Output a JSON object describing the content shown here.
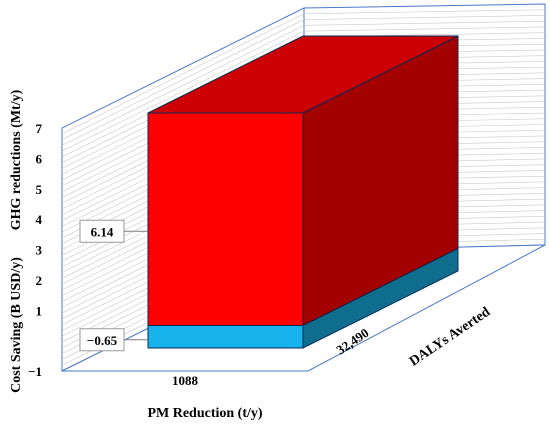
{
  "chart_data": {
    "type": "bar",
    "subtype": "3d-stacked-bar",
    "x_category": "1088",
    "xlabel": "PM Reduction (t/y)",
    "depth_category": "32,490",
    "depth_label": "DALYs Averted",
    "ylabel_upper": "GHG reductions (Mt/y)",
    "ylabel_lower": "Cost Saving (B USD/y)",
    "ylim": [
      -1,
      7
    ],
    "yticks": [
      "7",
      "6",
      "5",
      "4",
      "3",
      "2",
      "1",
      "−1"
    ],
    "series": [
      {
        "name": "",
        "value": -0.65,
        "label": "−0.65",
        "color_front": "#17b3ec",
        "color_side": "#0f6e8e"
      },
      {
        "name": "",
        "value": 6.14,
        "label": "6.14",
        "color_front": "#ff0000",
        "color_side": "#a30000",
        "color_top": "#cc0000"
      }
    ],
    "grid": true,
    "wall_color": "#4a78c8"
  }
}
